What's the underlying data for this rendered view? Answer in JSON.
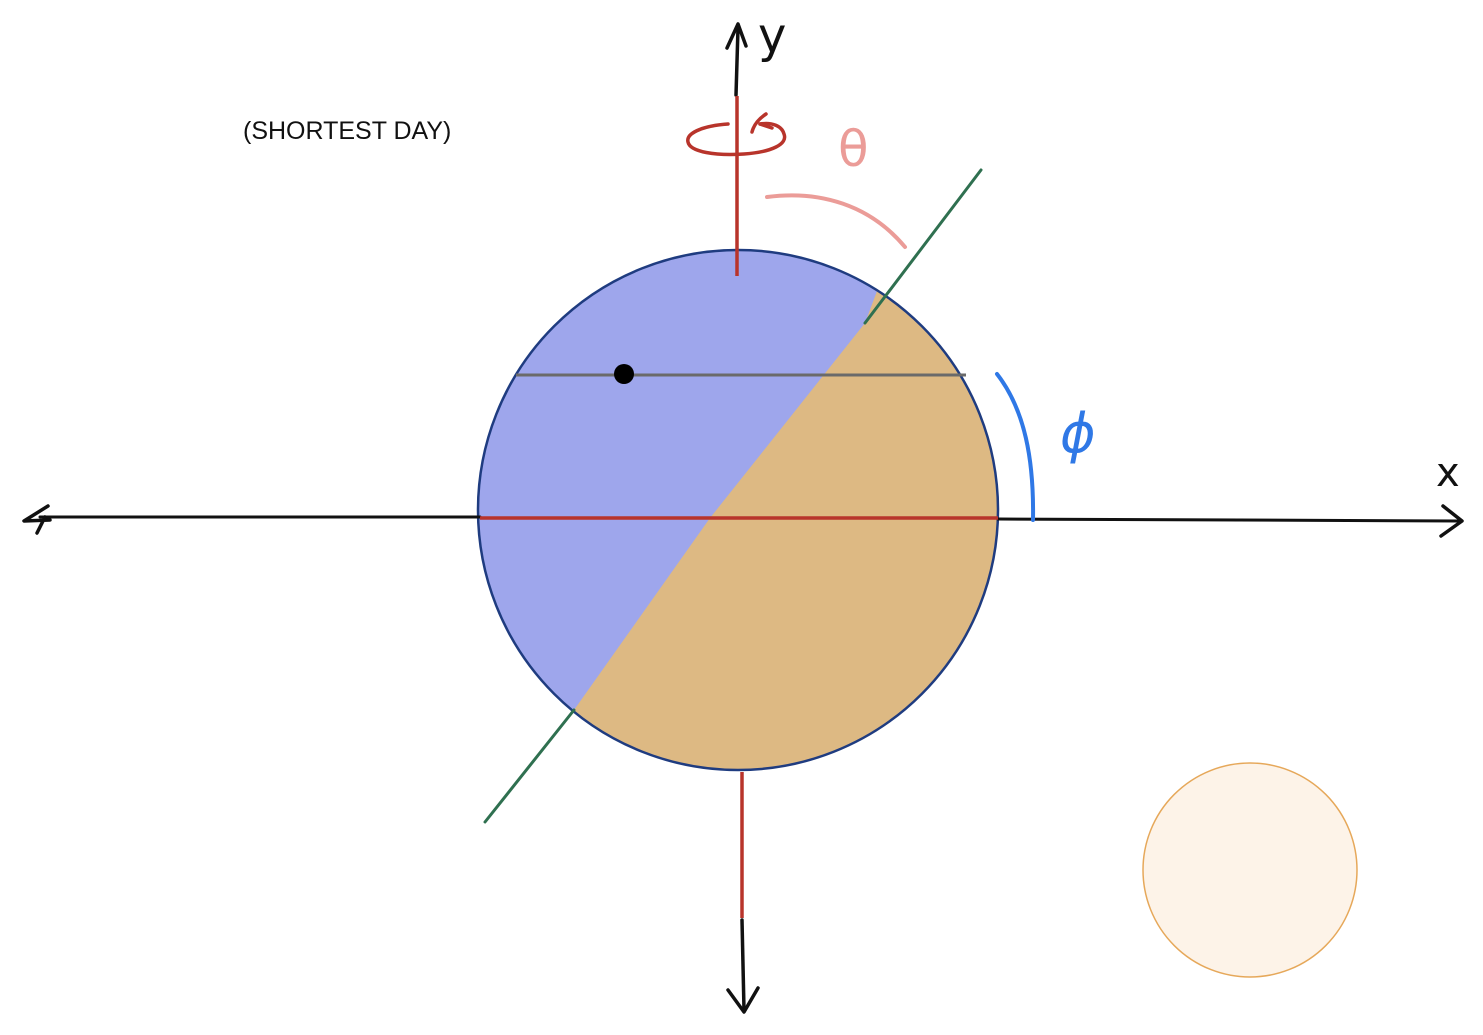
{
  "caption": "(SHORTEST DAY)",
  "labels": {
    "y_axis": "y",
    "x_axis": "x",
    "theta": "θ",
    "phi": "ϕ"
  },
  "colors": {
    "night_side": "#9ea6ec",
    "day_side": "#ddb983",
    "outline": "#1f3c80",
    "axes": "#111111",
    "rotation_axis": "#b8342b",
    "tilt_axis": "#2f7050",
    "latitude_line": "#6a6a6a",
    "theta_arc": "#eb9c98",
    "phi_arc": "#2f78e6",
    "sun_fill": "#fdf3e8",
    "sun_stroke": "#e6a85a",
    "observer_dot": "#000000"
  },
  "icons": {
    "rotation": "counterclockwise-rotation-icon",
    "sun": "sun-circle-icon",
    "observer": "observer-dot-icon"
  }
}
